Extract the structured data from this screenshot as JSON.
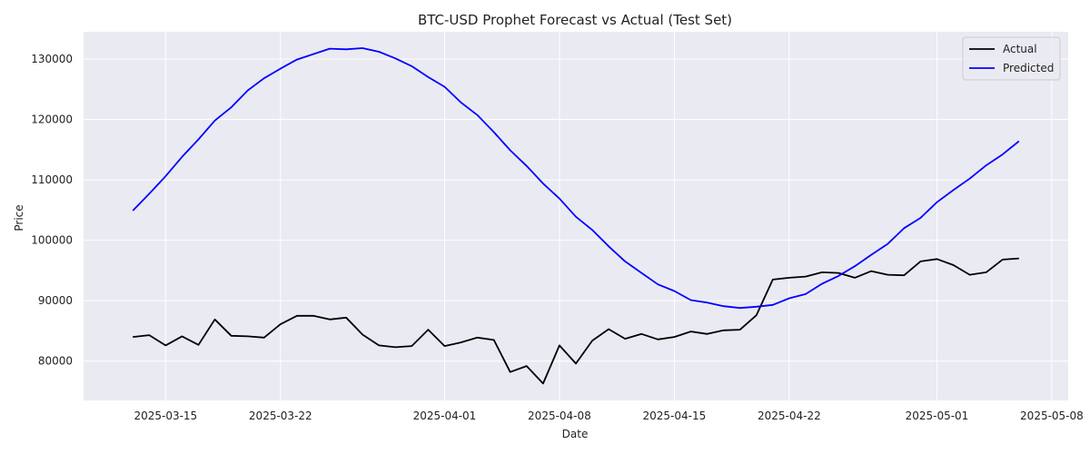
{
  "chart_data": {
    "type": "line",
    "title": "BTC-USD Prophet Forecast vs Actual (Test Set)",
    "xlabel": "Date",
    "ylabel": "Price",
    "x_axis": {
      "type": "date",
      "range": [
        "2025-03-10",
        "2025-05-09"
      ],
      "ticks": [
        "2025-03-15",
        "2025-03-22",
        "2025-04-01",
        "2025-04-08",
        "2025-04-15",
        "2025-04-22",
        "2025-05-01",
        "2025-05-08"
      ]
    },
    "y_axis": {
      "range": [
        73500,
        134500
      ],
      "ticks": [
        80000,
        90000,
        100000,
        110000,
        120000,
        130000
      ]
    },
    "grid": true,
    "legend_position": "top-right",
    "colors": {
      "Actual": "#000000",
      "Predicted": "#0000ff",
      "plot_background": "#eaeaf2",
      "grid": "#ffffff"
    },
    "x": [
      "2025-03-13",
      "2025-03-14",
      "2025-03-15",
      "2025-03-16",
      "2025-03-17",
      "2025-03-18",
      "2025-03-19",
      "2025-03-20",
      "2025-03-21",
      "2025-03-22",
      "2025-03-23",
      "2025-03-24",
      "2025-03-25",
      "2025-03-26",
      "2025-03-27",
      "2025-03-28",
      "2025-03-29",
      "2025-03-30",
      "2025-03-31",
      "2025-04-01",
      "2025-04-02",
      "2025-04-03",
      "2025-04-04",
      "2025-04-05",
      "2025-04-06",
      "2025-04-07",
      "2025-04-08",
      "2025-04-09",
      "2025-04-10",
      "2025-04-11",
      "2025-04-12",
      "2025-04-13",
      "2025-04-14",
      "2025-04-15",
      "2025-04-16",
      "2025-04-17",
      "2025-04-18",
      "2025-04-19",
      "2025-04-20",
      "2025-04-21",
      "2025-04-22",
      "2025-04-23",
      "2025-04-24",
      "2025-04-25",
      "2025-04-26",
      "2025-04-27",
      "2025-04-28",
      "2025-04-29",
      "2025-04-30",
      "2025-05-01",
      "2025-05-02",
      "2025-05-03",
      "2025-05-04",
      "2025-05-05",
      "2025-05-06",
      "2025-05-07"
    ],
    "series": [
      {
        "name": "Actual",
        "values": [
          84000,
          84300,
          82600,
          84100,
          82700,
          86900,
          84200,
          84100,
          83900,
          86100,
          87500,
          87500,
          86900,
          87200,
          84400,
          82600,
          82300,
          82500,
          85200,
          82500,
          83100,
          83900,
          83500,
          78200,
          79200,
          76300,
          82600,
          79600,
          83400,
          85300,
          83700,
          84500,
          83600,
          84000,
          84900,
          84500,
          85100,
          85200,
          87600,
          93500,
          93800,
          94000,
          94700,
          94600,
          93800,
          94900,
          94300,
          94200,
          96500,
          96900,
          95900,
          94300,
          94700,
          96800,
          97000,
          null
        ]
      },
      {
        "name": "Predicted",
        "values": [
          104900,
          107700,
          110600,
          113800,
          116700,
          119800,
          122000,
          124800,
          126800,
          128400,
          129900,
          130800,
          131700,
          131600,
          131800,
          131200,
          130100,
          128800,
          127000,
          125400,
          122800,
          120700,
          117900,
          114900,
          112300,
          109400,
          106900,
          103900,
          101700,
          99000,
          96500,
          94600,
          92700,
          91600,
          90100,
          89700,
          89100,
          88800,
          89000,
          89300,
          90400,
          91100,
          92800,
          94100,
          95700,
          97600,
          99400,
          102000,
          103700,
          106300,
          108300,
          110200,
          112400,
          114200,
          116400,
          null
        ]
      }
    ]
  }
}
